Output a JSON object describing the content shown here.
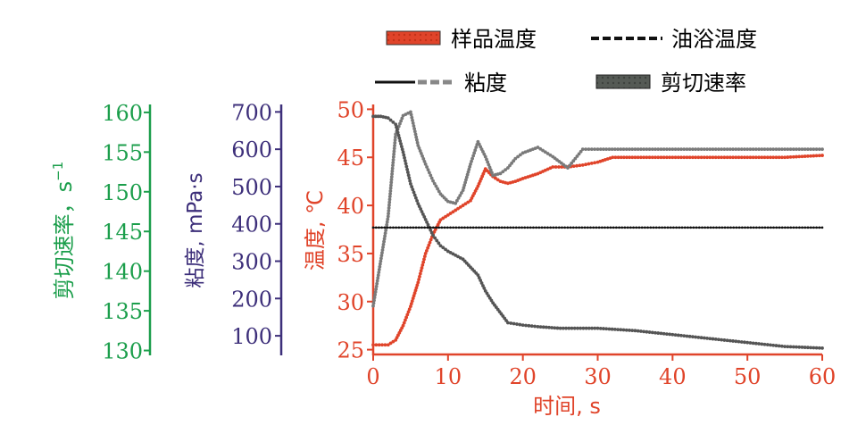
{
  "chart_data": {
    "type": "line",
    "xlabel": "时间, s",
    "x_ticks": [
      0,
      10,
      20,
      30,
      40,
      50,
      60
    ],
    "xlim": [
      0,
      60
    ],
    "axes": {
      "shear": {
        "label": "剪切速率，s",
        "label_sup": "−1",
        "ticks": [
          130,
          135,
          140,
          145,
          150,
          155,
          160
        ],
        "ylim": [
          129.5,
          161.0
        ],
        "color": "#1b9e4b"
      },
      "viscosity": {
        "label": "粘度, mPa·s",
        "ticks": [
          100,
          200,
          300,
          400,
          500,
          600,
          700
        ],
        "ylim": [
          50,
          720
        ],
        "color": "#3d2f7a"
      },
      "temperature": {
        "label": "温度, ℃",
        "ticks": [
          25,
          30,
          35,
          40,
          45,
          50
        ],
        "ylim": [
          24.5,
          50.5
        ],
        "color": "#e0442a"
      }
    },
    "legend": [
      {
        "name": "样品温度",
        "style": "filled-red"
      },
      {
        "name": "油浴温度",
        "style": "dashed-black"
      },
      {
        "name": "粘度",
        "style": "solid-dashed-black"
      },
      {
        "name": "剪切速率",
        "style": "filled-dark-gray"
      }
    ],
    "series": [
      {
        "name": "样品温度",
        "axis": "temperature",
        "color": "#e0442a",
        "x": [
          0,
          2,
          3,
          4,
          5,
          6,
          7,
          8,
          9,
          10,
          11,
          12,
          13,
          14,
          15,
          16,
          17,
          18,
          19,
          20,
          22,
          24,
          26,
          28,
          30,
          32,
          35,
          40,
          45,
          50,
          55,
          60
        ],
        "y": [
          25.5,
          25.5,
          26,
          27.5,
          29.5,
          32,
          35,
          37,
          38.5,
          39,
          39.5,
          40,
          40.5,
          42,
          43.8,
          43,
          42.5,
          42.3,
          42.5,
          42.8,
          43.3,
          44,
          44,
          44.2,
          44.5,
          45,
          45,
          45,
          45,
          45,
          45,
          45.2
        ]
      },
      {
        "name": "粘度",
        "axis": "viscosity",
        "color": "#7a7a7a",
        "x": [
          0,
          1,
          2,
          3,
          4,
          5,
          6,
          7,
          8,
          9,
          10,
          11,
          12,
          13,
          14,
          15,
          16,
          17,
          18,
          19,
          20,
          22,
          24,
          26,
          28,
          30,
          35,
          40,
          45,
          50,
          55,
          60
        ],
        "y": [
          180,
          300,
          420,
          640,
          690,
          700,
          610,
          560,
          515,
          480,
          460,
          455,
          490,
          560,
          620,
          580,
          530,
          535,
          550,
          575,
          590,
          605,
          580,
          550,
          600,
          600,
          600,
          600,
          600,
          600,
          600,
          600
        ]
      },
      {
        "name": "剪切速率",
        "axis": "shear",
        "color": "#555555",
        "x": [
          0,
          1,
          2,
          3,
          4,
          5,
          6,
          7,
          8,
          9,
          10,
          12,
          14,
          15,
          16,
          18,
          20,
          22,
          25,
          30,
          35,
          40,
          45,
          50,
          55,
          60
        ],
        "y": [
          159.5,
          159.5,
          159.3,
          158.5,
          155,
          151,
          148.5,
          146.5,
          144.5,
          143.2,
          142.5,
          141.5,
          139.5,
          137.5,
          136,
          133.5,
          133.2,
          133,
          132.8,
          132.8,
          132.5,
          132,
          131.5,
          131,
          130.5,
          130.3
        ]
      },
      {
        "name": "油浴温度",
        "axis": "temperature",
        "color": "#111111",
        "x": [
          0,
          60
        ],
        "y": [
          37.7,
          37.7
        ]
      }
    ]
  }
}
